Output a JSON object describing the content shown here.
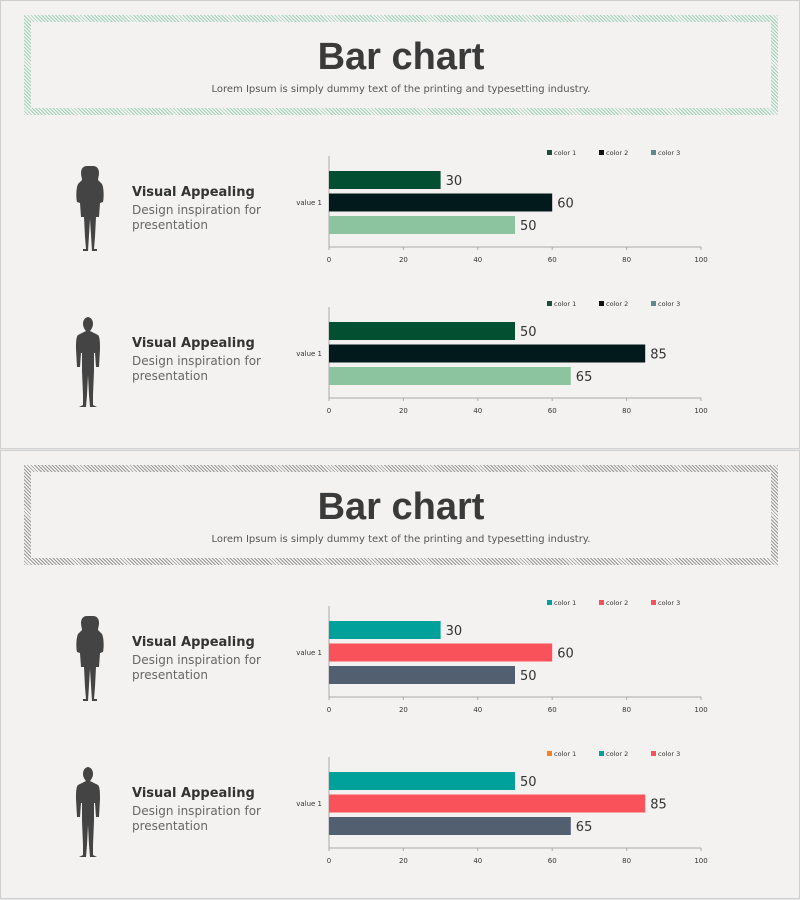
{
  "slides": [
    {
      "title": "Bar chart",
      "subtitle": "Lorem Ipsum is simply dummy text of the printing and typesetting industry.",
      "frame_color": "#9fd3b8",
      "rows": [
        {
          "figure": "woman-silhouette",
          "heading": "Visual Appealing",
          "desc": "Design inspiration for presentation"
        },
        {
          "figure": "man-silhouette",
          "heading": "Visual Appealing",
          "desc": "Design inspiration for presentation"
        }
      ]
    },
    {
      "title": "Bar chart",
      "subtitle": "Lorem Ipsum is simply dummy text of the printing and typesetting industry.",
      "frame_color": "#999999",
      "rows": [
        {
          "figure": "woman-silhouette",
          "heading": "Visual Appealing",
          "desc": "Design inspiration for presentation"
        },
        {
          "figure": "man-silhouette",
          "heading": "Visual Appealing",
          "desc": "Design inspiration for presentation"
        }
      ]
    }
  ],
  "chart_data": [
    {
      "type": "bar",
      "orientation": "horizontal",
      "categories": [
        "value 1"
      ],
      "xlim": [
        0,
        100
      ],
      "xticks": [
        0,
        20,
        40,
        60,
        80,
        100
      ],
      "legend": [
        {
          "name": "color 1",
          "color": "#1e4d3a"
        },
        {
          "name": "color 2",
          "color": "#111111"
        },
        {
          "name": "color 3",
          "color": "#5f8a8b"
        }
      ],
      "legend_position": "top-right",
      "series": [
        {
          "values": [
            30
          ],
          "color": "#024f31"
        },
        {
          "values": [
            60
          ],
          "color": "#031a1d"
        },
        {
          "values": [
            50
          ],
          "color": "#8cc4a0"
        }
      ]
    },
    {
      "type": "bar",
      "orientation": "horizontal",
      "categories": [
        "value 1"
      ],
      "xlim": [
        0,
        100
      ],
      "xticks": [
        0,
        20,
        40,
        60,
        80,
        100
      ],
      "legend": [
        {
          "name": "color 1",
          "color": "#1e4d3a"
        },
        {
          "name": "color 2",
          "color": "#111111"
        },
        {
          "name": "color 3",
          "color": "#5f8a8b"
        }
      ],
      "legend_position": "top-right",
      "series": [
        {
          "values": [
            50
          ],
          "color": "#024f31"
        },
        {
          "values": [
            85
          ],
          "color": "#031a1d"
        },
        {
          "values": [
            65
          ],
          "color": "#8cc4a0"
        }
      ]
    },
    {
      "type": "bar",
      "orientation": "horizontal",
      "categories": [
        "value 1"
      ],
      "xlim": [
        0,
        100
      ],
      "xticks": [
        0,
        20,
        40,
        60,
        80,
        100
      ],
      "legend": [
        {
          "name": "color 1",
          "color": "#00a19a"
        },
        {
          "name": "color 2",
          "color": "#fa525a"
        },
        {
          "name": "color 3",
          "color": "#fa525a"
        }
      ],
      "legend_position": "top-right",
      "series": [
        {
          "values": [
            30
          ],
          "color": "#00a19a"
        },
        {
          "values": [
            60
          ],
          "color": "#fa525a"
        },
        {
          "values": [
            50
          ],
          "color": "#525f70"
        }
      ]
    },
    {
      "type": "bar",
      "orientation": "horizontal",
      "categories": [
        "value 1"
      ],
      "xlim": [
        0,
        100
      ],
      "xticks": [
        0,
        20,
        40,
        60,
        80,
        100
      ],
      "legend": [
        {
          "name": "color 1",
          "color": "#f58220"
        },
        {
          "name": "color 2",
          "color": "#00a19a"
        },
        {
          "name": "color 3",
          "color": "#fa525a"
        }
      ],
      "legend_position": "top-right",
      "series": [
        {
          "values": [
            50
          ],
          "color": "#00a19a"
        },
        {
          "values": [
            85
          ],
          "color": "#fa525a"
        },
        {
          "values": [
            65
          ],
          "color": "#525f70"
        }
      ]
    }
  ]
}
